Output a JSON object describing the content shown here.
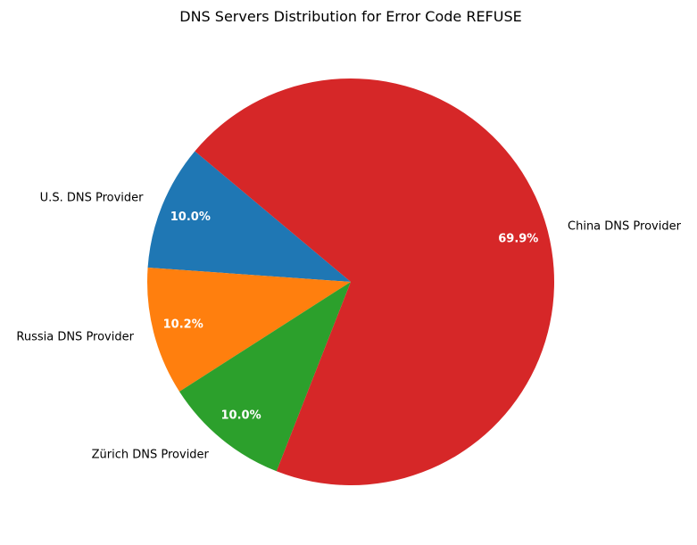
{
  "chart_data": {
    "type": "pie",
    "title": "DNS Servers Distribution for Error Code REFUSE",
    "start_angle_deg": 140,
    "direction": "counterclockwise",
    "legend": "none",
    "slices": [
      {
        "label": "U.S. DNS Provider",
        "value": 10.0,
        "pct_label": "10.0%",
        "color": "#1f77b4"
      },
      {
        "label": "Russia DNS Provider",
        "value": 10.2,
        "pct_label": "10.2%",
        "color": "#ff7f0e"
      },
      {
        "label": "Zürich DNS Provider",
        "value": 10.0,
        "pct_label": "10.0%",
        "color": "#2ca02c"
      },
      {
        "label": "China DNS Provider",
        "value": 69.9,
        "pct_label": "69.9%",
        "color": "#d62728"
      }
    ]
  }
}
